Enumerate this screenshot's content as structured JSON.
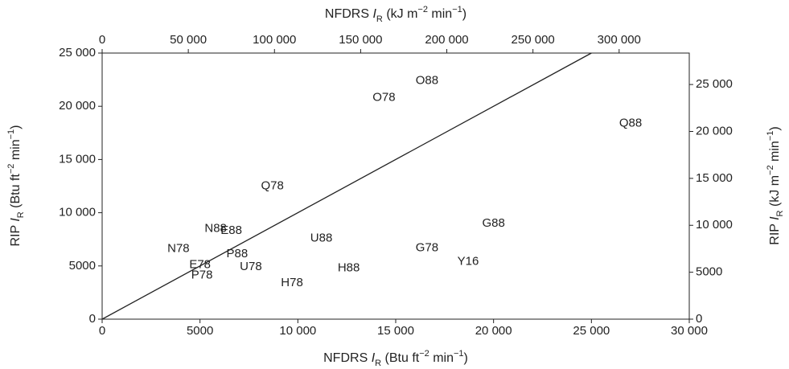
{
  "chart_data": {
    "type": "scatter",
    "x_label": [
      "NFDRS ",
      "I",
      "R",
      " (Btu ft",
      "−2",
      " min",
      "−1",
      ")"
    ],
    "y_label": [
      "RIP ",
      "I",
      "R",
      " (Btu ft",
      "−2",
      " min",
      "−1",
      ")"
    ],
    "x2_label": [
      "NFDRS ",
      "I",
      "R",
      " (kJ m",
      "−2",
      " min",
      "−1",
      ")"
    ],
    "y2_label": [
      "RIP ",
      "I",
      "R",
      " (kJ m",
      "−2",
      " min",
      "−1",
      ")"
    ],
    "labels": [
      "O88",
      "O78",
      "Q88",
      "Q78",
      "N88",
      "E88",
      "G88",
      "U88",
      "N78",
      "G78",
      "P88",
      "E78",
      "Y16",
      "U78",
      "H88",
      "P78",
      "H78"
    ],
    "x": [
      16600,
      14400,
      27000,
      8700,
      5800,
      6600,
      20000,
      11200,
      3900,
      16600,
      6900,
      5000,
      18700,
      7600,
      12600,
      5100,
      9700
    ],
    "y": [
      22400,
      20800,
      18400,
      12500,
      8500,
      8300,
      9000,
      7600,
      6600,
      6700,
      6100,
      5100,
      5400,
      4900,
      4800,
      4100,
      3400
    ],
    "reference_line": {
      "x": [
        0,
        25000
      ],
      "y": [
        0,
        25000
      ]
    },
    "color": "#222222",
    "xlim": [
      0,
      30000
    ],
    "xticks": [
      0,
      {
        "value": 5000,
        "label": "5000"
      },
      {
        "value": 10000,
        "label": "10 000"
      },
      {
        "value": 15000,
        "label": "15 000"
      },
      {
        "value": 20000,
        "label": "20 000"
      },
      {
        "value": 25000,
        "label": "25 000"
      },
      {
        "value": 30000,
        "label": "30 000"
      }
    ],
    "ylim": [
      0,
      25000
    ],
    "yticks": [
      0,
      {
        "value": 5000,
        "label": "5000"
      },
      {
        "value": 10000,
        "label": "10 000"
      },
      {
        "value": 15000,
        "label": "15 000"
      },
      {
        "value": 20000,
        "label": "20 000"
      },
      {
        "value": 25000,
        "label": "25 000"
      }
    ],
    "x2lim": [
      0,
      340700
    ],
    "x2ticks": [
      0,
      {
        "value": 50000,
        "label": "50 000"
      },
      {
        "value": 100000,
        "label": "100 000"
      },
      {
        "value": 150000,
        "label": "150 000"
      },
      {
        "value": 200000,
        "label": "200 000"
      },
      {
        "value": 250000,
        "label": "250 000"
      },
      {
        "value": 300000,
        "label": "300 000"
      }
    ],
    "y2lim": [
      0,
      28350
    ],
    "y2ticks": [
      0,
      {
        "value": 5000,
        "label": "5000"
      },
      {
        "value": 10000,
        "label": "10 000"
      },
      {
        "value": 15000,
        "label": "15 000"
      },
      {
        "value": 20000,
        "label": "20 000"
      },
      {
        "value": 25000,
        "label": "25 000"
      }
    ]
  }
}
